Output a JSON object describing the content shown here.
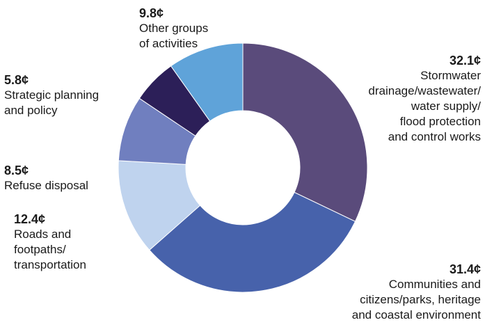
{
  "chart_data": {
    "type": "pie",
    "donut": true,
    "slices": [
      {
        "value_label": "32.1¢",
        "value": 32.1,
        "label": "Stormwater\ndrainage/wastewater/\nwater supply/\nflood protection\nand control works",
        "color": "#5a4b7b"
      },
      {
        "value_label": "31.4¢",
        "value": 31.4,
        "label": "Communities and\ncitizens/parks, heritage\nand coastal environment",
        "color": "#4762ab"
      },
      {
        "value_label": "12.4¢",
        "value": 12.4,
        "label": "Roads and\nfootpaths/\ntransportation",
        "color": "#bfd3ee"
      },
      {
        "value_label": "8.5¢",
        "value": 8.5,
        "label": "Refuse disposal",
        "color": "#707fbf"
      },
      {
        "value_label": "5.8¢",
        "value": 5.8,
        "label": "Strategic planning\nand policy",
        "color": "#2c1f58"
      },
      {
        "value_label": "9.8¢",
        "value": 9.8,
        "label": "Other groups\nof activities",
        "color": "#5fa3d9"
      }
    ]
  }
}
